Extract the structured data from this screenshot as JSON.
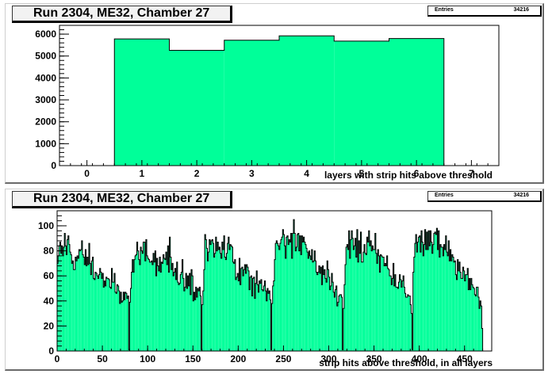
{
  "chart_data": [
    {
      "type": "bar",
      "title": "Run 2304, ME32, Chamber 27",
      "stats": {
        "label": "Entries",
        "value": "34216"
      },
      "xlabel": "layers with strip hits above threshold",
      "ylabel": "",
      "xlim": [
        -0.5,
        7.5
      ],
      "ylim": [
        0,
        6400
      ],
      "xticks": [
        "0",
        "1",
        "2",
        "3",
        "4",
        "5",
        "6",
        "7"
      ],
      "yticks": [
        "0",
        "1000",
        "2000",
        "3000",
        "4000",
        "5000",
        "6000"
      ],
      "categories": [
        1,
        2,
        3,
        4,
        5,
        6
      ],
      "values": [
        5780,
        5260,
        5720,
        5920,
        5680,
        5800
      ],
      "fill": "#00ff99",
      "line": "#000000"
    },
    {
      "type": "area",
      "title": "Run 2304, ME32, Chamber 27",
      "stats": {
        "label": "Entries",
        "value": "34216"
      },
      "xlabel": "strip hits above threshold, in all layers",
      "ylabel": "",
      "xlim": [
        0,
        480
      ],
      "ylim": [
        0,
        112
      ],
      "xticks": [
        "0",
        "50",
        "100",
        "150",
        "200",
        "250",
        "300",
        "350",
        "400",
        "450"
      ],
      "yticks": [
        "0",
        "20",
        "40",
        "60",
        "80",
        "100"
      ],
      "bin_width": 1,
      "values": [
        70,
        76,
        84,
        87,
        78,
        84,
        76,
        83,
        94,
        84,
        77,
        89,
        92,
        85,
        79,
        77,
        70,
        72,
        65,
        65,
        75,
        72,
        76,
        74,
        81,
        80,
        81,
        88,
        77,
        75,
        69,
        81,
        68,
        75,
        69,
        86,
        70,
        61,
        72,
        75,
        58,
        57,
        63,
        62,
        60,
        58,
        61,
        66,
        63,
        58,
        62,
        51,
        56,
        52,
        59,
        58,
        58,
        57,
        51,
        50,
        66,
        55,
        55,
        62,
        47,
        46,
        53,
        52,
        48,
        38,
        47,
        39,
        40,
        47,
        41,
        47,
        46,
        42,
        44,
        1,
        39,
        50,
        63,
        73,
        63,
        73,
        76,
        77,
        87,
        80,
        73,
        69,
        83,
        80,
        78,
        87,
        87,
        72,
        89,
        76,
        74,
        73,
        71,
        71,
        72,
        69,
        78,
        71,
        80,
        60,
        74,
        68,
        64,
        75,
        63,
        71,
        70,
        77,
        74,
        73,
        79,
        69,
        84,
        63,
        91,
        75,
        65,
        70,
        60,
        63,
        66,
        57,
        71,
        55,
        53,
        54,
        61,
        63,
        73,
        58,
        48,
        51,
        62,
        50,
        60,
        52,
        62,
        45,
        65,
        60,
        40,
        47,
        41,
        51,
        43,
        50,
        48,
        51,
        44,
        1,
        37,
        48,
        65,
        93,
        89,
        82,
        72,
        79,
        89,
        85,
        88,
        89,
        86,
        75,
        78,
        91,
        80,
        87,
        81,
        83,
        78,
        74,
        87,
        81,
        92,
        75,
        73,
        78,
        86,
        91,
        81,
        85,
        84,
        83,
        71,
        70,
        73,
        57,
        59,
        62,
        56,
        74,
        53,
        66,
        67,
        60,
        65,
        69,
        62,
        69,
        67,
        64,
        49,
        59,
        60,
        44,
        58,
        59,
        42,
        54,
        64,
        53,
        47,
        56,
        54,
        57,
        49,
        48,
        52,
        56,
        48,
        40,
        50,
        46,
        48,
        41,
        1,
        38,
        52,
        56,
        73,
        86,
        88,
        86,
        84,
        81,
        86,
        89,
        91,
        97,
        93,
        84,
        74,
        91,
        92,
        85,
        89,
        87,
        94,
        74,
        94,
        105,
        94,
        80,
        83,
        93,
        94,
        80,
        92,
        77,
        92,
        87,
        91,
        87,
        85,
        82,
        79,
        74,
        80,
        76,
        73,
        81,
        71,
        72,
        80,
        72,
        63,
        61,
        63,
        68,
        62,
        67,
        53,
        68,
        61,
        65,
        58,
        55,
        72,
        65,
        59,
        49,
        52,
        62,
        55,
        47,
        43,
        49,
        52,
        36,
        39,
        44,
        45,
        45,
        43,
        1,
        34,
        53,
        69,
        83,
        85,
        81,
        96,
        74,
        89,
        96,
        90,
        81,
        84,
        90,
        75,
        97,
        71,
        88,
        78,
        95,
        71,
        71,
        79,
        85,
        78,
        77,
        91,
        87,
        96,
        84,
        88,
        80,
        84,
        81,
        81,
        94,
        78,
        70,
        81,
        76,
        63,
        77,
        76,
        75,
        75,
        68,
        70,
        68,
        76,
        66,
        65,
        60,
        60,
        53,
        58,
        70,
        52,
        61,
        51,
        51,
        50,
        55,
        61,
        57,
        51,
        56,
        60,
        51,
        46,
        43,
        43,
        45,
        44,
        44,
        37,
        30,
        1,
        63,
        75,
        86,
        93,
        79,
        87,
        91,
        92,
        79,
        96,
        87,
        76,
        85,
        97,
        81,
        95,
        81,
        96,
        84,
        96,
        87,
        78,
        85,
        94,
        95,
        93,
        98,
        81,
        96,
        75,
        85,
        83,
        83,
        76,
        85,
        81,
        92,
        79,
        76,
        88,
        72,
        81,
        72,
        77,
        75,
        71,
        72,
        61,
        57,
        73,
        64,
        71,
        63,
        58,
        58,
        67,
        64,
        56,
        61,
        61,
        66,
        49,
        58,
        49,
        58,
        53,
        51,
        50,
        45,
        44,
        51,
        51,
        43,
        34,
        40,
        36,
        18
      ]
    }
  ]
}
